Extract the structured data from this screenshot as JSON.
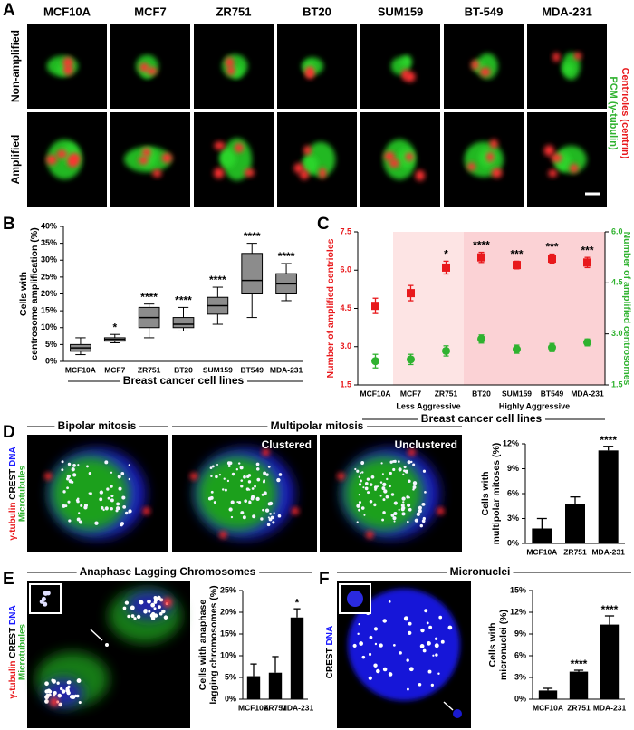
{
  "panel_labels": [
    "A",
    "B",
    "C",
    "D",
    "E",
    "F"
  ],
  "panel_a": {
    "columns": [
      "MCF10A",
      "MCF7",
      "ZR751",
      "BT20",
      "SUM159",
      "BT-549",
      "MDA-231"
    ],
    "rows": [
      "Non-amplified",
      "Amplified"
    ],
    "stains": [
      "Centrioles (centrin)",
      "PCM (γ-tubulin)"
    ]
  },
  "panel_d": {
    "headers": [
      "Bipolar mitosis",
      "Multipolar mitosis"
    ],
    "image_labels": [
      "Clustered",
      "Unclustered"
    ],
    "stains": [
      "γ-tubulin",
      "CREST",
      "DNA",
      "Microtubules"
    ]
  },
  "panel_e": {
    "header": "Anaphase Lagging Chromosomes",
    "stains": [
      "γ-tubulin",
      "CREST",
      "DNA",
      "Microtubules"
    ]
  },
  "panel_f": {
    "header": "Micronuclei",
    "stains": [
      "CREST",
      "DNA"
    ]
  },
  "chart_data": [
    {
      "type": "box",
      "categories": [
        "MCF10A",
        "MCF7",
        "ZR751",
        "BT20",
        "SUM159",
        "BT549",
        "MDA-231"
      ],
      "whisker_low": [
        2,
        5.5,
        7,
        9,
        11,
        13,
        18
      ],
      "q1": [
        3,
        6,
        10,
        10,
        14,
        20,
        20
      ],
      "median": [
        4,
        6.5,
        13,
        11,
        16.5,
        24,
        23
      ],
      "q3": [
        5,
        7,
        16,
        13,
        19,
        32,
        26
      ],
      "whisker_high": [
        7,
        8,
        17,
        16,
        22,
        35,
        29
      ],
      "significance": [
        null,
        "*",
        "****",
        "****",
        "****",
        "****",
        "****"
      ],
      "color": "#8c8c8c",
      "ylabel": [
        "Cells with",
        "centrosome amplification (%)"
      ],
      "xlabel": "Breast cancer cell lines",
      "ylim": [
        0,
        40
      ],
      "yticks": [
        {
          "value": 0,
          "label": "0%"
        },
        {
          "value": 5,
          "label": "5%"
        },
        {
          "value": 10,
          "label": "10%"
        },
        {
          "value": 15,
          "label": "15%"
        },
        {
          "value": 20,
          "label": "20%"
        },
        {
          "value": 25,
          "label": "25%"
        },
        {
          "value": 30,
          "label": "30%"
        },
        {
          "value": 35,
          "label": "35%"
        },
        {
          "value": 40,
          "label": "40%"
        }
      ]
    },
    {
      "type": "dot",
      "categories": [
        "MCF10A",
        "MCF7",
        "ZR751",
        "BT20",
        "SUM159",
        "BT549",
        "MDA-231"
      ],
      "series": [
        {
          "name": "Number of amplified centrioles",
          "color": "#e8191c",
          "marker": "square",
          "values": [
            4.6,
            5.1,
            6.1,
            6.5,
            6.2,
            6.45,
            6.3
          ],
          "errors": [
            0.3,
            0.3,
            0.25,
            0.2,
            0.15,
            0.18,
            0.2
          ],
          "significance": [
            null,
            null,
            "*",
            "****",
            "***",
            "***",
            "***"
          ]
        },
        {
          "name": "Number of amplified centrosomes",
          "color": "#2fb22f",
          "marker": "circle",
          "axis": "y2",
          "values": [
            2.2,
            2.25,
            2.5,
            2.85,
            2.55,
            2.6,
            2.75
          ],
          "errors": [
            0.2,
            0.15,
            0.15,
            0.12,
            0.12,
            0.12,
            0.1
          ]
        }
      ],
      "groups": [
        {
          "label": "Less Aggressive",
          "from": "MCF7",
          "to": "ZR751",
          "color": "#fde4e4"
        },
        {
          "label": "Highly Aggressive",
          "from": "BT20",
          "to": "MDA-231",
          "color": "#fbd2d5"
        }
      ],
      "xlabel": "Breast cancer cell lines",
      "ylim": [
        1.5,
        7.5
      ],
      "yticks": [
        1.5,
        {
          "value": 3,
          "label": "3.0"
        },
        4.5,
        {
          "value": 6,
          "label": "6.0"
        },
        7.5
      ],
      "y2lim": [
        1.5,
        6
      ],
      "y2ticks": [
        1.5,
        {
          "value": 3,
          "label": "3.0"
        },
        4.5,
        {
          "value": 6,
          "label": "6.0"
        }
      ]
    },
    {
      "type": "bar",
      "categories": [
        "MCF10A",
        "ZR751",
        "MDA-231"
      ],
      "values": [
        1.8,
        4.8,
        11.2
      ],
      "errors": [
        1.2,
        0.8,
        0.5
      ],
      "significance": [
        null,
        null,
        "****"
      ],
      "color": "#000000",
      "ylabel": [
        "Cells with",
        "multipolar mitoses (%)"
      ],
      "ylim": [
        0,
        12
      ],
      "yticks": [
        {
          "value": 0,
          "label": "0%"
        },
        {
          "value": 3,
          "label": "3%"
        },
        {
          "value": 6,
          "label": "6%"
        },
        {
          "value": 9,
          "label": "9%"
        },
        {
          "value": 12,
          "label": "12%"
        }
      ]
    },
    {
      "type": "bar",
      "categories": [
        "MCF10A",
        "ZR751",
        "MDA-231"
      ],
      "values": [
        5.3,
        6.1,
        18.8
      ],
      "errors": [
        2.8,
        3.7,
        2.0
      ],
      "significance": [
        null,
        null,
        "*"
      ],
      "color": "#000000",
      "ylabel": [
        "Cells with anaphase",
        "lagging chromosomes (%)"
      ],
      "ylim": [
        0,
        25
      ],
      "yticks": [
        {
          "value": 0,
          "label": "0%"
        },
        {
          "value": 5,
          "label": "5%"
        },
        {
          "value": 10,
          "label": "10%"
        },
        {
          "value": 15,
          "label": "15%"
        },
        {
          "value": 20,
          "label": "20%"
        },
        {
          "value": 25,
          "label": "25%"
        }
      ]
    },
    {
      "type": "bar",
      "categories": [
        "MCF10A",
        "ZR751",
        "MDA-231"
      ],
      "values": [
        1.2,
        3.8,
        10.3
      ],
      "errors": [
        0.3,
        0.2,
        1.2
      ],
      "significance": [
        null,
        "****",
        "****"
      ],
      "color": "#000000",
      "ylabel": [
        "Cells with",
        "micronuclei (%)"
      ],
      "ylim": [
        0,
        15
      ],
      "yticks": [
        {
          "value": 0,
          "label": "0%"
        },
        {
          "value": 3,
          "label": "3%"
        },
        {
          "value": 6,
          "label": "6%"
        },
        {
          "value": 9,
          "label": "9%"
        },
        {
          "value": 12,
          "label": "12%"
        },
        {
          "value": 15,
          "label": "15%"
        }
      ]
    }
  ]
}
